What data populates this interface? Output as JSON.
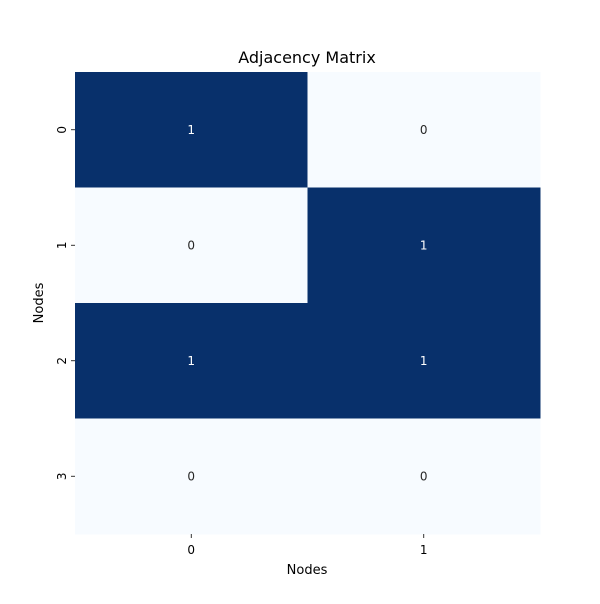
{
  "chart_data": {
    "type": "heatmap",
    "title": "Adjacency Matrix",
    "xlabel": "Nodes",
    "ylabel": "Nodes",
    "x_categories": [
      "0",
      "1"
    ],
    "y_categories": [
      "0",
      "1",
      "2",
      "3"
    ],
    "values": [
      [
        1,
        0
      ],
      [
        0,
        1
      ],
      [
        1,
        1
      ],
      [
        0,
        0
      ]
    ],
    "colormap": {
      "low": "#f7fbff",
      "high": "#08306b"
    },
    "label_colors": {
      "on_low": "#262626",
      "on_high": "#ffffff"
    },
    "value_range": [
      0,
      1
    ],
    "colorbar": false
  }
}
